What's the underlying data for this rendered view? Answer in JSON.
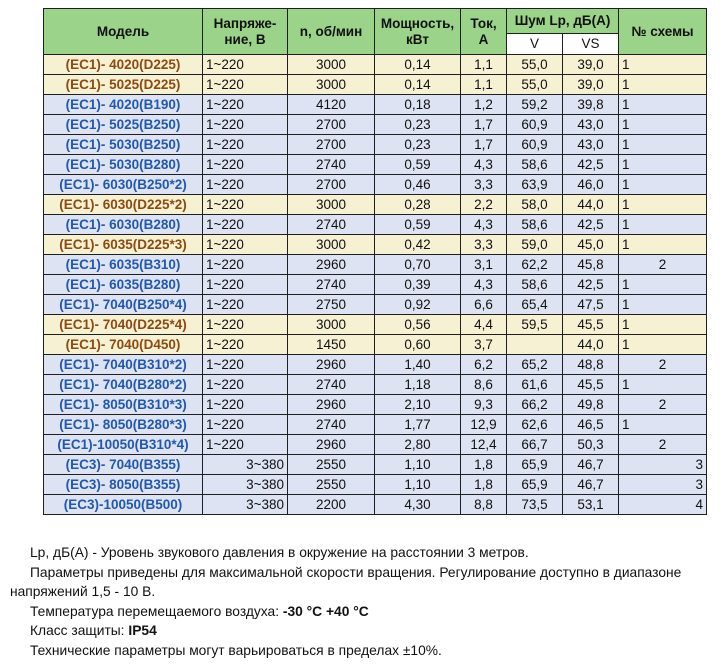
{
  "table": {
    "headers": {
      "model": "Модель",
      "voltage": "Напряже-ние, В",
      "rpm": "n, об/мин",
      "power": "Мощность, кВт",
      "current": "Ток, А",
      "noise": "Шум Lp, дБ(A)",
      "noise_v": "V",
      "noise_vs": "VS",
      "scheme": "№ схемы"
    },
    "rows": [
      {
        "model": "(EC1)- 4020(D225)",
        "voltage": "1~220",
        "rpm": "3000",
        "power": "0,14",
        "current": "1,1",
        "v": "55,0",
        "vs": "39,0",
        "scheme": "1",
        "style": "gold",
        "vclass": "l",
        "scls": "cs"
      },
      {
        "model": "(EC1)- 5025(D225)",
        "voltage": "1~220",
        "rpm": "3000",
        "power": "0,14",
        "current": "1,1",
        "v": "55,0",
        "vs": "39,0",
        "scheme": "1",
        "style": "gold",
        "vclass": "l",
        "scls": "cs"
      },
      {
        "model": "(EC1)- 4020(B190)",
        "voltage": "1~220",
        "rpm": "4120",
        "power": "0,18",
        "current": "1,2",
        "v": "59,2",
        "vs": "39,8",
        "scheme": "1",
        "style": "blue",
        "vclass": "l",
        "scls": "cs"
      },
      {
        "model": "(EC1)- 5025(B250)",
        "voltage": "1~220",
        "rpm": "2700",
        "power": "0,23",
        "current": "1,7",
        "v": "60,9",
        "vs": "43,0",
        "scheme": "1",
        "style": "blue",
        "vclass": "l",
        "scls": "cs"
      },
      {
        "model": "(EC1)- 5030(B250)",
        "voltage": "1~220",
        "rpm": "2700",
        "power": "0,23",
        "current": "1,7",
        "v": "60,9",
        "vs": "43,0",
        "scheme": "1",
        "style": "blue",
        "vclass": "l",
        "scls": "cs"
      },
      {
        "model": "(EC1)- 5030(B280)",
        "voltage": "1~220",
        "rpm": "2740",
        "power": "0,59",
        "current": "4,3",
        "v": "58,6",
        "vs": "42,5",
        "scheme": "1",
        "style": "blue",
        "vclass": "l",
        "scls": "cs"
      },
      {
        "model": "(EC1)- 6030(B250*2)",
        "voltage": "1~220",
        "rpm": "2700",
        "power": "0,46",
        "current": "3,3",
        "v": "63,9",
        "vs": "46,0",
        "scheme": "1",
        "style": "blue",
        "vclass": "l",
        "scls": "cs"
      },
      {
        "model": "(EC1)- 6030(D225*2)",
        "voltage": "1~220",
        "rpm": "3000",
        "power": "0,28",
        "current": "2,2",
        "v": "58,0",
        "vs": "44,0",
        "scheme": "1",
        "style": "gold",
        "vclass": "l",
        "scls": "cs"
      },
      {
        "model": "(EC1)- 6030(B280)",
        "voltage": "1~220",
        "rpm": "2740",
        "power": "0,59",
        "current": "4,3",
        "v": "58,6",
        "vs": "42,5",
        "scheme": "1",
        "style": "blue",
        "vclass": "l",
        "scls": "cs"
      },
      {
        "model": "(EC1)- 6035(D225*3)",
        "voltage": "1~220",
        "rpm": "3000",
        "power": "0,42",
        "current": "3,3",
        "v": "59,0",
        "vs": "45,0",
        "scheme": "1",
        "style": "gold",
        "vclass": "l",
        "scls": "cs"
      },
      {
        "model": "(EC1)- 6035(B310)",
        "voltage": "1~220",
        "rpm": "2960",
        "power": "0,70",
        "current": "3,1",
        "v": "62,2",
        "vs": "45,8",
        "scheme": "2",
        "style": "blue",
        "vclass": "l",
        "scls": "c"
      },
      {
        "model": "(EC1)- 6035(B280)",
        "voltage": "1~220",
        "rpm": "2740",
        "power": "0,39",
        "current": "4,3",
        "v": "58,6",
        "vs": "42,5",
        "scheme": "1",
        "style": "blue",
        "vclass": "l",
        "scls": "cs"
      },
      {
        "model": "(EC1)- 7040(B250*4)",
        "voltage": "1~220",
        "rpm": "2750",
        "power": "0,92",
        "current": "6,6",
        "v": "65,4",
        "vs": "47,5",
        "scheme": "1",
        "style": "blue",
        "vclass": "l",
        "scls": "cs"
      },
      {
        "model": "(EC1)- 7040(D225*4)",
        "voltage": "1~220",
        "rpm": "3000",
        "power": "0,56",
        "current": "4,4",
        "v": "59,5",
        "vs": "45,5",
        "scheme": "1",
        "style": "gold",
        "vclass": "l",
        "scls": "cs"
      },
      {
        "model": "(EC1)- 7040(D450)",
        "voltage": "1~220",
        "rpm": "1450",
        "power": "0,60",
        "current": "3,7",
        "v": "",
        "vs": "44,0",
        "scheme": "1",
        "style": "gold",
        "vclass": "l",
        "scls": "cs"
      },
      {
        "model": "(EC1)- 7040(B310*2)",
        "voltage": "1~220",
        "rpm": "2960",
        "power": "1,40",
        "current": "6,2",
        "v": "65,2",
        "vs": "48,8",
        "scheme": "2",
        "style": "blue",
        "vclass": "l",
        "scls": "c"
      },
      {
        "model": "(EC1)- 7040(B280*2)",
        "voltage": "1~220",
        "rpm": "2740",
        "power": "1,18",
        "current": "8,6",
        "v": "61,6",
        "vs": "45,5",
        "scheme": "1",
        "style": "blue",
        "vclass": "l",
        "scls": "cs"
      },
      {
        "model": "(EC1)- 8050(B310*3)",
        "voltage": "1~220",
        "rpm": "2960",
        "power": "2,10",
        "current": "9,3",
        "v": "66,2",
        "vs": "49,8",
        "scheme": "2",
        "style": "blue",
        "vclass": "l",
        "scls": "c"
      },
      {
        "model": "(EC1)- 8050(B280*3)",
        "voltage": "1~220",
        "rpm": "2740",
        "power": "1,77",
        "current": "12,9",
        "v": "62,6",
        "vs": "46,5",
        "scheme": "1",
        "style": "blue",
        "vclass": "l",
        "scls": "cs"
      },
      {
        "model": "(EC1)-10050(B310*4)",
        "voltage": "1~220",
        "rpm": "2960",
        "power": "2,80",
        "current": "12,4",
        "v": "66,7",
        "vs": "50,3",
        "scheme": "2",
        "style": "blue",
        "vclass": "l",
        "scls": "c"
      },
      {
        "model": "(EC3)- 7040(B355)",
        "voltage": "3~380",
        "rpm": "2550",
        "power": "1,10",
        "current": "1,8",
        "v": "65,9",
        "vs": "46,7",
        "scheme": "3",
        "style": "blue",
        "vclass": "c",
        "scls": "r"
      },
      {
        "model": "(EC3)- 8050(B355)",
        "voltage": "3~380",
        "rpm": "2550",
        "power": "1,10",
        "current": "1,8",
        "v": "65,9",
        "vs": "46,7",
        "scheme": "3",
        "style": "blue",
        "vclass": "c",
        "scls": "r"
      },
      {
        "model": "(EC3)-10050(B500)",
        "voltage": "3~380",
        "rpm": "2200",
        "power": "4,30",
        "current": "8,8",
        "v": "73,5",
        "vs": "53,1",
        "scheme": "4",
        "style": "blue",
        "vclass": "c",
        "scls": "r"
      }
    ]
  },
  "notes": {
    "n1": "Lp, дБ(A) - Уровень звукового давления в окружение на расстоянии 3 метров.",
    "n2": "Параметры приведены для максимальной скорости вращения. Регулирование доступно в диапазоне напряжений 1,5 - 10 В.",
    "n3_prefix": "Температура перемещаемого воздуха: ",
    "n3_value": "-30 °C +40 °C",
    "n4_prefix": "Класс защиты: ",
    "n4_value": "IP54",
    "n5": "Технические параметры могут варьироваться в пределах ±10%."
  },
  "colors": {
    "header_bg": "#9bd38a",
    "blue_row_bg": "#dde3f2",
    "blue_model_text": "#2358a8",
    "gold_row_bg": "#f6f1d3",
    "gold_model_text": "#8a4a12"
  }
}
